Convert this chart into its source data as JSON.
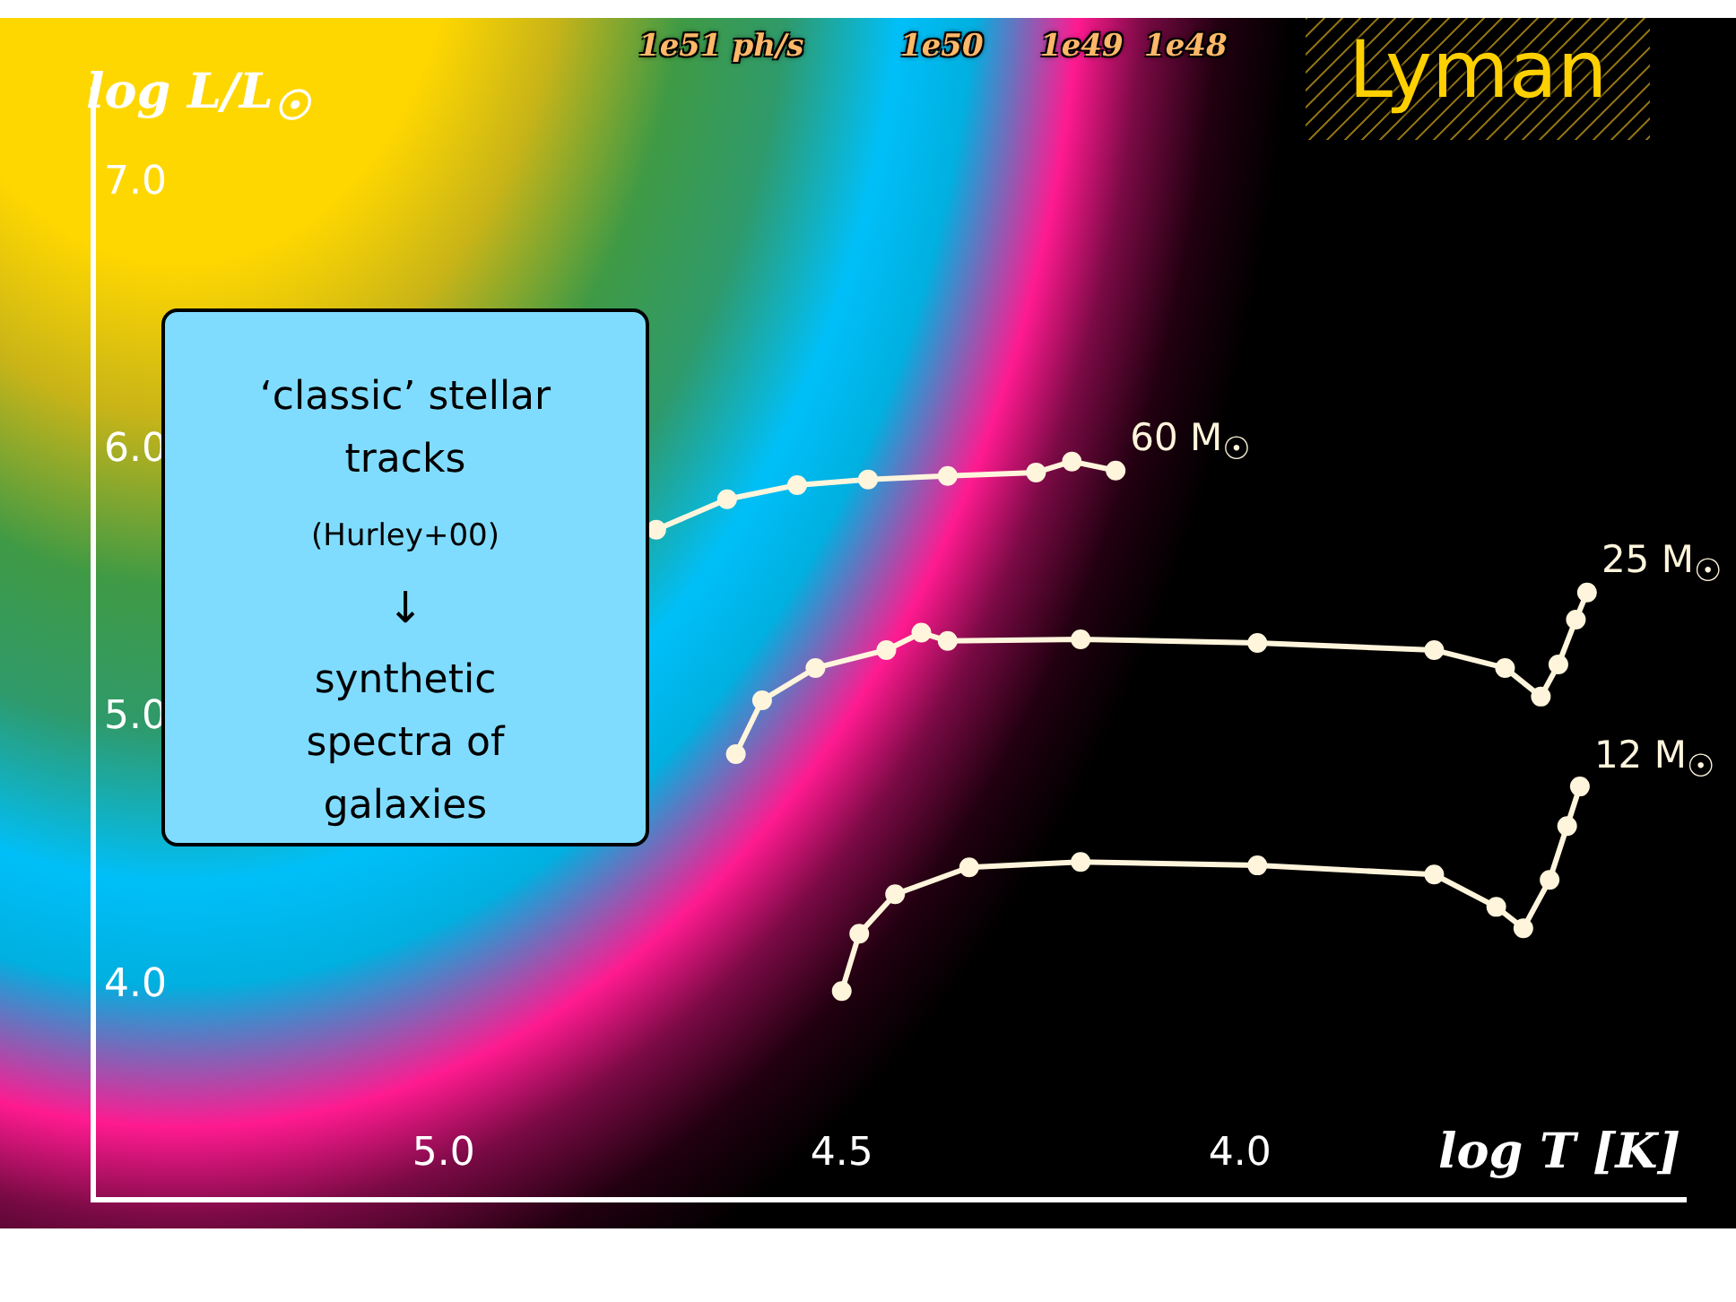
{
  "chart_data": {
    "type": "line",
    "xlabel": "log T [K]",
    "ylabel": "log L/L$_{☉}$",
    "xlim": [
      5.44,
      3.44
    ],
    "ylim": [
      3.2,
      7.35
    ],
    "xticks": [
      {
        "value": 5,
        "label": "5.0"
      },
      {
        "value": 4.5,
        "label": "4.5"
      },
      {
        "value": 4,
        "label": "4.0"
      }
    ],
    "yticks": [
      {
        "value": 4,
        "label": "4.0"
      },
      {
        "value": 5,
        "label": "5.0"
      },
      {
        "value": 6,
        "label": "6.0"
      },
      {
        "value": 7,
        "label": "7.0"
      }
    ],
    "grid": false,
    "legend": false,
    "marker": "circle",
    "line_style": "solid",
    "series": [
      {
        "name": "60 M$_{☉}$",
        "color": "#fff5dc",
        "x": [
          4.733,
          4.644,
          4.556,
          4.467,
          4.367,
          4.256,
          4.211,
          4.156
        ],
        "values": [
          5.705,
          5.819,
          5.872,
          5.893,
          5.906,
          5.919,
          5.96,
          5.926
        ]
      },
      {
        "name": "25 M$_{☉}$",
        "color": "#fff5dc",
        "x": [
          4.633,
          4.6,
          4.533,
          4.444,
          4.4,
          4.367,
          4.2,
          3.978,
          3.756,
          3.667,
          3.622,
          3.6,
          3.578,
          3.564
        ],
        "values": [
          4.866,
          5.067,
          5.188,
          5.255,
          5.32,
          5.289,
          5.295,
          5.282,
          5.255,
          5.188,
          5.081,
          5.201,
          5.369,
          5.47
        ]
      },
      {
        "name": "12 M$_{☉}$",
        "color": "#fff5dc",
        "x": [
          4.5,
          4.478,
          4.433,
          4.34,
          4.2,
          3.978,
          3.756,
          3.678,
          3.644,
          3.611,
          3.589,
          3.573
        ],
        "values": [
          3.98,
          4.195,
          4.342,
          4.443,
          4.463,
          4.45,
          4.416,
          4.295,
          4.215,
          4.396,
          4.597,
          4.745
        ]
      }
    ],
    "annotations": [
      "1e51 ph/s",
      "1e50",
      "1e49",
      "1e48",
      "Lyman",
      "‘classic’ stellar tracks",
      "(Hurley+00)",
      "↓",
      "synthetic spectra of galaxies"
    ]
  }
}
